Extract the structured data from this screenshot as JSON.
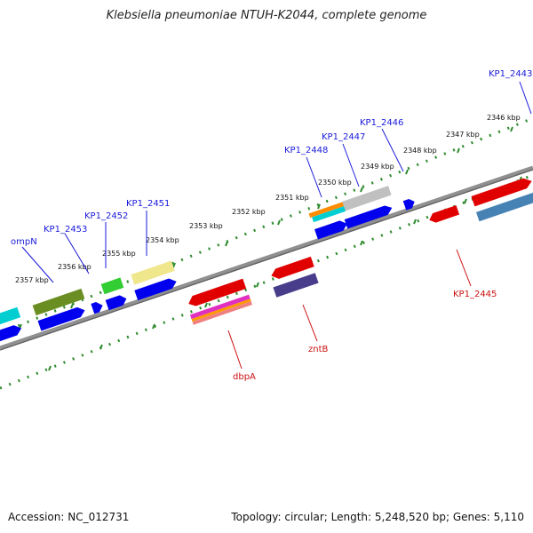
{
  "title": "Klebsiella pneumoniae NTUH-K2044, complete genome",
  "footer": {
    "accession": "Accession: NC_012731",
    "summary": "Topology: circular; Length: 5,248,520 bp; Genes: 5,110"
  },
  "colors": {
    "backbone": "#8a8a8a",
    "tick": "#2e8b2e",
    "label_top": "#1a1adb",
    "label_bottom": "#cc1111"
  },
  "kbp_labels": [
    "2346 kbp",
    "2347 kbp",
    "2348 kbp",
    "2349 kbp",
    "2350 kbp",
    "2351 kbp",
    "2352 kbp",
    "2353 kbp",
    "2354 kbp",
    "2355 kbp",
    "2356 kbp",
    "2357 kbp"
  ],
  "gene_labels": {
    "top": [
      "KP1_2443",
      "KP1_2446",
      "KP1_2447",
      "KP1_2448",
      "KP1_2451",
      "KP1_2452",
      "KP1_2453",
      "ompN"
    ],
    "bottom": [
      "KP1_2445",
      "zntB",
      "dbpA"
    ]
  }
}
